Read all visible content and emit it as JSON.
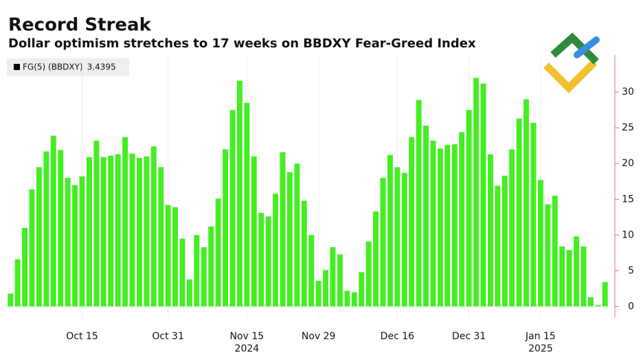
{
  "chart_data": {
    "type": "bar",
    "title": "Record Streak",
    "subtitle": "Dollar optimism stretches to 17 weeks on BBDXY Fear-Greed Index",
    "categories": [
      null,
      null,
      null,
      null,
      null,
      null,
      null,
      null,
      null,
      null,
      "Oct 15",
      null,
      null,
      null,
      null,
      null,
      null,
      null,
      null,
      null,
      null,
      null,
      "Oct 31",
      null,
      null,
      null,
      null,
      null,
      null,
      null,
      null,
      null,
      null,
      "Nov 15",
      null,
      null,
      null,
      null,
      null,
      null,
      null,
      null,
      null,
      "Nov 29",
      null,
      null,
      null,
      null,
      null,
      null,
      null,
      null,
      null,
      null,
      "Dec 16",
      null,
      null,
      null,
      null,
      null,
      null,
      null,
      null,
      null,
      "Dec 31",
      null,
      null,
      null,
      null,
      null,
      null,
      null,
      null,
      null,
      "Jan 15",
      null,
      null,
      null,
      null,
      null,
      null,
      null,
      null,
      null
    ],
    "years": [
      null,
      null,
      null,
      null,
      null,
      null,
      null,
      null,
      null,
      null,
      null,
      null,
      null,
      null,
      null,
      null,
      null,
      null,
      null,
      null,
      null,
      null,
      null,
      null,
      null,
      null,
      null,
      null,
      null,
      null,
      null,
      null,
      null,
      "2024",
      null,
      null,
      null,
      null,
      null,
      null,
      null,
      null,
      null,
      null,
      null,
      null,
      null,
      null,
      null,
      null,
      null,
      null,
      null,
      null,
      null,
      null,
      null,
      null,
      null,
      null,
      null,
      null,
      null,
      null,
      null,
      null,
      null,
      null,
      null,
      null,
      null,
      null,
      null,
      null,
      "2025",
      null,
      null,
      null,
      null,
      null,
      null,
      null,
      null,
      null
    ],
    "series": [
      {
        "name": "FG(5) (BBDXY)",
        "color": "#44ee22",
        "values": [
          1.8,
          6.6,
          11.0,
          16.4,
          19.5,
          21.7,
          23.9,
          21.9,
          18.0,
          17.0,
          18.2,
          20.9,
          23.2,
          20.9,
          21.1,
          21.3,
          23.7,
          21.4,
          20.8,
          21.0,
          22.4,
          19.5,
          14.2,
          13.9,
          9.5,
          3.8,
          10.0,
          8.3,
          11.2,
          15.1,
          22.0,
          27.5,
          31.6,
          28.5,
          21.0,
          13.1,
          12.6,
          15.8,
          21.6,
          18.8,
          20.0,
          14.8,
          10.0,
          3.6,
          5.1,
          8.3,
          7.3,
          2.2,
          2.0,
          4.8,
          9.1,
          13.3,
          18.0,
          21.2,
          19.5,
          18.7,
          23.7,
          28.9,
          25.3,
          23.2,
          22.1,
          22.6,
          22.7,
          24.4,
          27.5,
          32.0,
          31.2,
          21.3,
          16.9,
          18.3,
          22.0,
          26.3,
          29.0,
          25.7,
          17.7,
          14.3,
          15.5,
          8.4,
          7.9,
          9.8,
          8.4,
          1.3,
          0.2,
          3.4395
        ]
      }
    ],
    "ylim": [
      -1.5,
      35.2
    ],
    "yticks": [
      0,
      5,
      10,
      15,
      20,
      25,
      30
    ],
    "grid": true,
    "axis_color": "#e07070"
  }
}
